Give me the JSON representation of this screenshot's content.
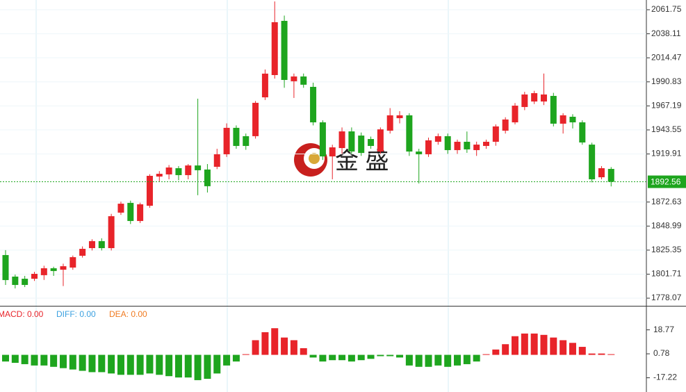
{
  "chart_data": [
    {
      "type": "candlestick",
      "watermark": "金 盛",
      "up_color": "#e8242a",
      "down_color": "#1ea51e",
      "open": [
        1820.5,
        1799.3,
        1797.2,
        1797.2,
        1800.7,
        1807.5,
        1806.1,
        1808.2,
        1819.8,
        1827.3,
        1834.2,
        1827.3,
        1862.2,
        1871.8,
        1854,
        1869,
        1897.7,
        1899.8,
        1905.9,
        1899.1,
        1908.6,
        1904.6,
        1907.3,
        1919.6,
        1945.6,
        1937.4,
        1937.4,
        1975.6,
        1997.5,
        2050.8,
        1991.4,
        1996.1,
        1985.9,
        1951,
        1917.5,
        1925.7,
        1942.1,
        1938,
        1934.6,
        1922.3,
        1942.8,
        1955.1,
        1957.9,
        1922.3,
        1919.6,
        1931.9,
        1937.4,
        1923.7,
        1931.9,
        1923.7,
        1927.8,
        1931.9,
        1942.8,
        1951,
        1966.1,
        1971.5,
        1971.5,
        1977,
        1949.7,
        1956.5,
        1951,
        1929.1,
        1897,
        1905.2
      ],
      "high": [
        1825.3,
        1801.3,
        1800,
        1804,
        1810,
        1809,
        1812,
        1820,
        1829,
        1836,
        1837,
        1861,
        1873,
        1874,
        1872,
        1900,
        1903,
        1909,
        1908,
        1910,
        1974.3,
        1910,
        1925,
        1950,
        1948,
        1940,
        1972,
        2003,
        2069.9,
        2056,
        1999,
        1999,
        1990,
        1953,
        1929,
        1946,
        1946,
        1941,
        1937,
        1946,
        1965,
        1962,
        1960,
        1925,
        1936,
        1940,
        1940,
        1934,
        1942,
        1932,
        1934,
        1949,
        1956,
        1970,
        1981,
        1982,
        1999,
        1980,
        1960,
        1959,
        1953,
        1931,
        1908,
        1907
      ],
      "low": [
        1791.1,
        1787.7,
        1789,
        1795,
        1796,
        1800,
        1790,
        1806,
        1818,
        1825,
        1825,
        1825,
        1860,
        1851,
        1852,
        1867,
        1893,
        1895,
        1894,
        1895,
        1879.3,
        1882,
        1905,
        1917,
        1925,
        1924,
        1935,
        1973,
        1994,
        1985,
        1975,
        1985,
        1948,
        1914,
        1895,
        1920,
        1920,
        1918,
        1925,
        1920,
        1940,
        1950,
        1918,
        1890.9,
        1917,
        1929,
        1920,
        1920,
        1921,
        1918,
        1925,
        1928,
        1940,
        1949,
        1963,
        1969,
        1968,
        1947,
        1940,
        1945,
        1929,
        1892,
        1895,
        1888
      ],
      "close": [
        1795.9,
        1791.1,
        1791.1,
        1802,
        1807.5,
        1804.8,
        1809.5,
        1818.4,
        1826.6,
        1834.2,
        1827.3,
        1858.7,
        1871,
        1854,
        1870.4,
        1898.4,
        1900.4,
        1906.6,
        1899.1,
        1908.6,
        1903.9,
        1888.2,
        1919.6,
        1945.6,
        1927.8,
        1927.8,
        1970.2,
        1998.9,
        2049.5,
        1992.7,
        1996.1,
        1988,
        1951,
        1917.5,
        1926.4,
        1942.1,
        1922.3,
        1920.9,
        1927.8,
        1944.1,
        1957.9,
        1957.9,
        1922.3,
        1919.6,
        1933.3,
        1937.4,
        1923.7,
        1931.9,
        1924.4,
        1929.1,
        1931.9,
        1947,
        1953.8,
        1967.4,
        1978.4,
        1979.7,
        1978.4,
        1949.7,
        1957.9,
        1951,
        1931.2,
        1895,
        1905.9,
        1892.56
      ],
      "last_price": 1892.56,
      "ylim": [
        1770.57,
        2071.32
      ],
      "yticks": [
        1778.07,
        1801.71,
        1825.35,
        1848.99,
        1872.63,
        1919.91,
        1943.55,
        1967.19,
        1990.83,
        2014.47,
        2038.11,
        2061.75
      ]
    },
    {
      "type": "bar",
      "legend": [
        "MACD: 0.00",
        "DIFF: 0.00",
        "DEA: 0.00"
      ],
      "legend_colors": [
        "#e8242a",
        "#3aa0e0",
        "#f07a20"
      ],
      "up_color": "#e8242a",
      "down_color": "#1ea51e",
      "values": [
        -5,
        -6,
        -7,
        -8,
        -8,
        -9,
        -10,
        -11,
        -12,
        -13,
        -13,
        -14,
        -15,
        -15,
        -15,
        -14,
        -15,
        -16,
        -17,
        -17,
        -19,
        -18,
        -14,
        -8,
        -5,
        0.5,
        11,
        17,
        20,
        13,
        11,
        5,
        -2,
        -5,
        -4,
        -4,
        -5,
        -4,
        -3,
        -1,
        -1,
        -2,
        -8,
        -9,
        -9,
        -8,
        -9,
        -8,
        -7,
        -5,
        0.5,
        4,
        8,
        14,
        16,
        16,
        15,
        13,
        11,
        9,
        6,
        1,
        1,
        0.5
      ],
      "ylim": [
        -27.9,
        36.3
      ],
      "yticks": [
        -17.22,
        0.78,
        18.77
      ]
    }
  ]
}
